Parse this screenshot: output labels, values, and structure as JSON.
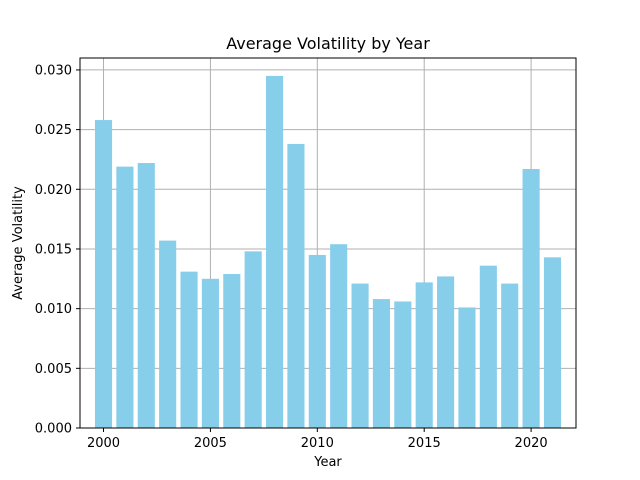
{
  "chart_data": {
    "type": "bar",
    "title": "Average Volatility by Year",
    "xlabel": "Year",
    "ylabel": "Average Volatility",
    "x": [
      2000,
      2001,
      2002,
      2003,
      2004,
      2005,
      2006,
      2007,
      2008,
      2009,
      2010,
      2011,
      2012,
      2013,
      2014,
      2015,
      2016,
      2017,
      2018,
      2019,
      2020,
      2021
    ],
    "values": [
      0.0258,
      0.0219,
      0.0222,
      0.0157,
      0.0131,
      0.0125,
      0.0129,
      0.0148,
      0.0295,
      0.0238,
      0.0145,
      0.0154,
      0.0121,
      0.0108,
      0.0106,
      0.0122,
      0.0127,
      0.0101,
      0.0136,
      0.0121,
      0.0217,
      0.0143
    ],
    "xlim": [
      1998.9,
      2022.1
    ],
    "ylim": [
      0,
      0.031
    ],
    "xticks": [
      2000,
      2005,
      2010,
      2015,
      2020
    ],
    "xtick_labels": [
      "2000",
      "2005",
      "2010",
      "2015",
      "2020"
    ],
    "yticks": [
      0,
      0.005,
      0.01,
      0.015,
      0.02,
      0.025,
      0.03
    ],
    "ytick_labels": [
      "0.000",
      "0.005",
      "0.010",
      "0.015",
      "0.020",
      "0.025",
      "0.030"
    ],
    "grid": true,
    "bar_color": "#87ceeb",
    "grid_color": "#b0b0b0"
  }
}
